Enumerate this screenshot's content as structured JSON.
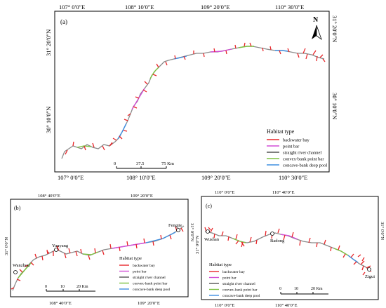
{
  "panel_a": {
    "label": "(a)",
    "lon_top": [
      "107° 0′0″E",
      "108° 10′0″E",
      "109° 20′0″E",
      "110° 30′0″E"
    ],
    "lon_bottom": [
      "107° 0′0″E",
      "108° 10′0″E",
      "109° 20′0″E",
      "110° 30′0″E"
    ],
    "lat_left": [
      "31° 20′0″N",
      "30° 10′0″N"
    ],
    "lat_right": [
      "31° 20′0″N",
      "30° 10′0″N"
    ],
    "north_label": "N",
    "scale_labels": [
      "0",
      "37.5",
      "75 Km"
    ],
    "legend_title": "Habitat type"
  },
  "panel_b": {
    "label": "(b)",
    "lon_top": [
      "108° 40′0″E",
      "109° 20′0″E"
    ],
    "lon_bottom": [
      "108° 40′0″E",
      "109° 20′0″E"
    ],
    "lat_left": "31° 0′0″N",
    "lat_right": "31° 0′0″N",
    "towns": [
      "Fengjie",
      "Yunyang",
      "Wanzhou"
    ],
    "legend_title": "Habitat type",
    "scale_labels": [
      "0",
      "10",
      "20 Km"
    ]
  },
  "panel_c": {
    "label": "(c)",
    "lon_top": [
      "110° 0′0″E",
      "110° 40′0″E"
    ],
    "lon_bottom": [
      "110° 0′0″E",
      "110° 40′0″E"
    ],
    "lat_left": "31° 0′0″N",
    "lat_right": "31° 0′0″N",
    "towns": [
      "Wushan",
      "Badong",
      "Zigui"
    ],
    "legend_title": "Habitat type",
    "scale_labels": [
      "0",
      "10",
      "20 Km"
    ]
  },
  "legend_items": [
    {
      "label": "backwater bay",
      "color": "#e8262a"
    },
    {
      "label": "point bar",
      "color": "#d24fd6"
    },
    {
      "label": "straight river channel",
      "color": "#555555"
    },
    {
      "label": "convex-bank point bar",
      "color": "#7dc242"
    },
    {
      "label": "concave-bank deep pool",
      "color": "#3f8fe0"
    }
  ],
  "colors": {
    "river": "#8a8a8a",
    "backwater": "#e8262a",
    "pointbar": "#d24fd6",
    "convex": "#7dc242",
    "pool": "#3f8fe0"
  }
}
